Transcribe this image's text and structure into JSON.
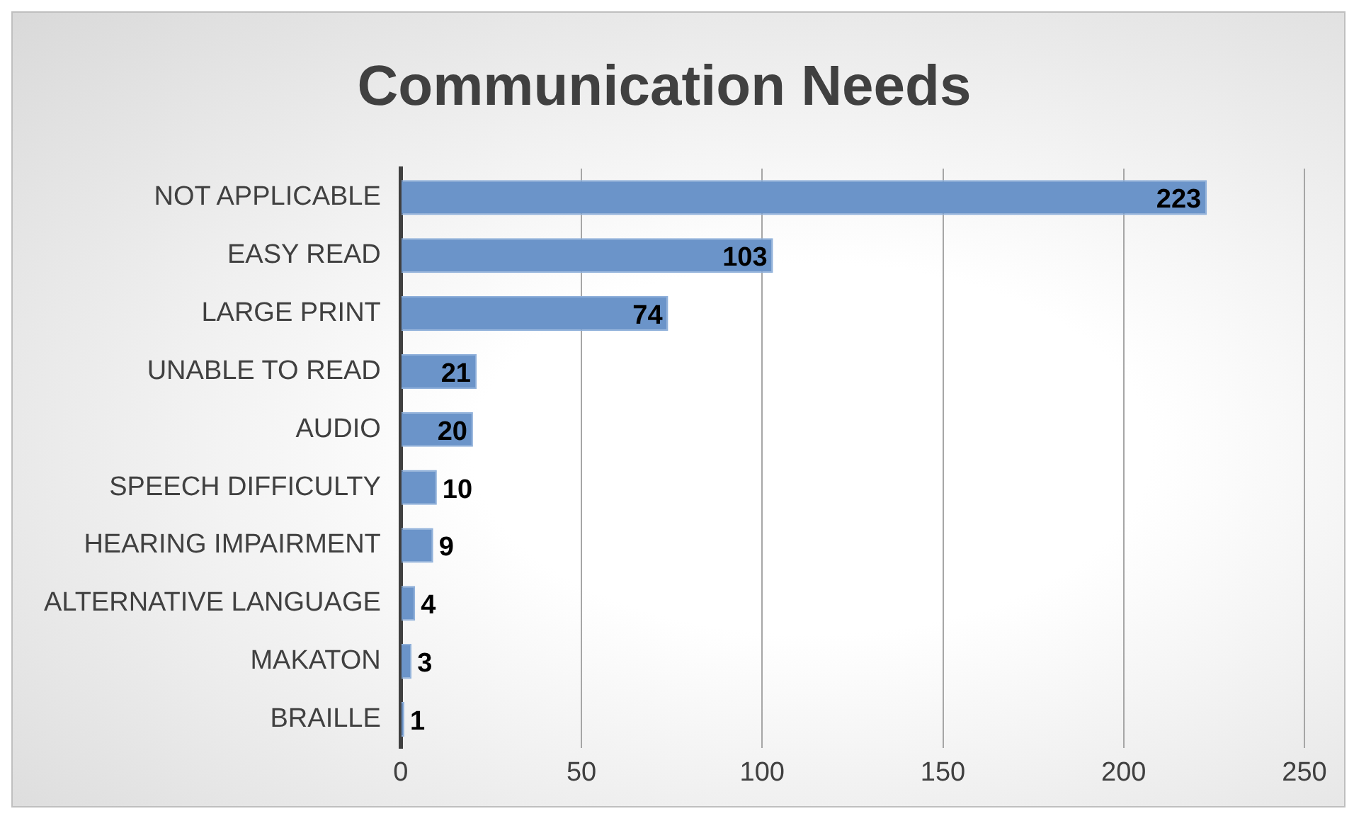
{
  "chart_data": {
    "type": "bar",
    "orientation": "horizontal",
    "title": "Communication Needs",
    "categories": [
      "NOT APPLICABLE",
      "EASY READ",
      "LARGE PRINT",
      "UNABLE TO READ",
      "AUDIO",
      "SPEECH DIFFICULTY",
      "HEARING IMPAIRMENT",
      "ALTERNATIVE LANGUAGE",
      "MAKATON",
      "BRAILLE"
    ],
    "values": [
      223,
      103,
      74,
      21,
      20,
      10,
      9,
      4,
      3,
      1
    ],
    "color": "#6b94c9",
    "xlim": [
      0,
      250
    ],
    "xticks": [
      0,
      50,
      100,
      150,
      200,
      250
    ],
    "grid": "x",
    "data_labels": true
  }
}
